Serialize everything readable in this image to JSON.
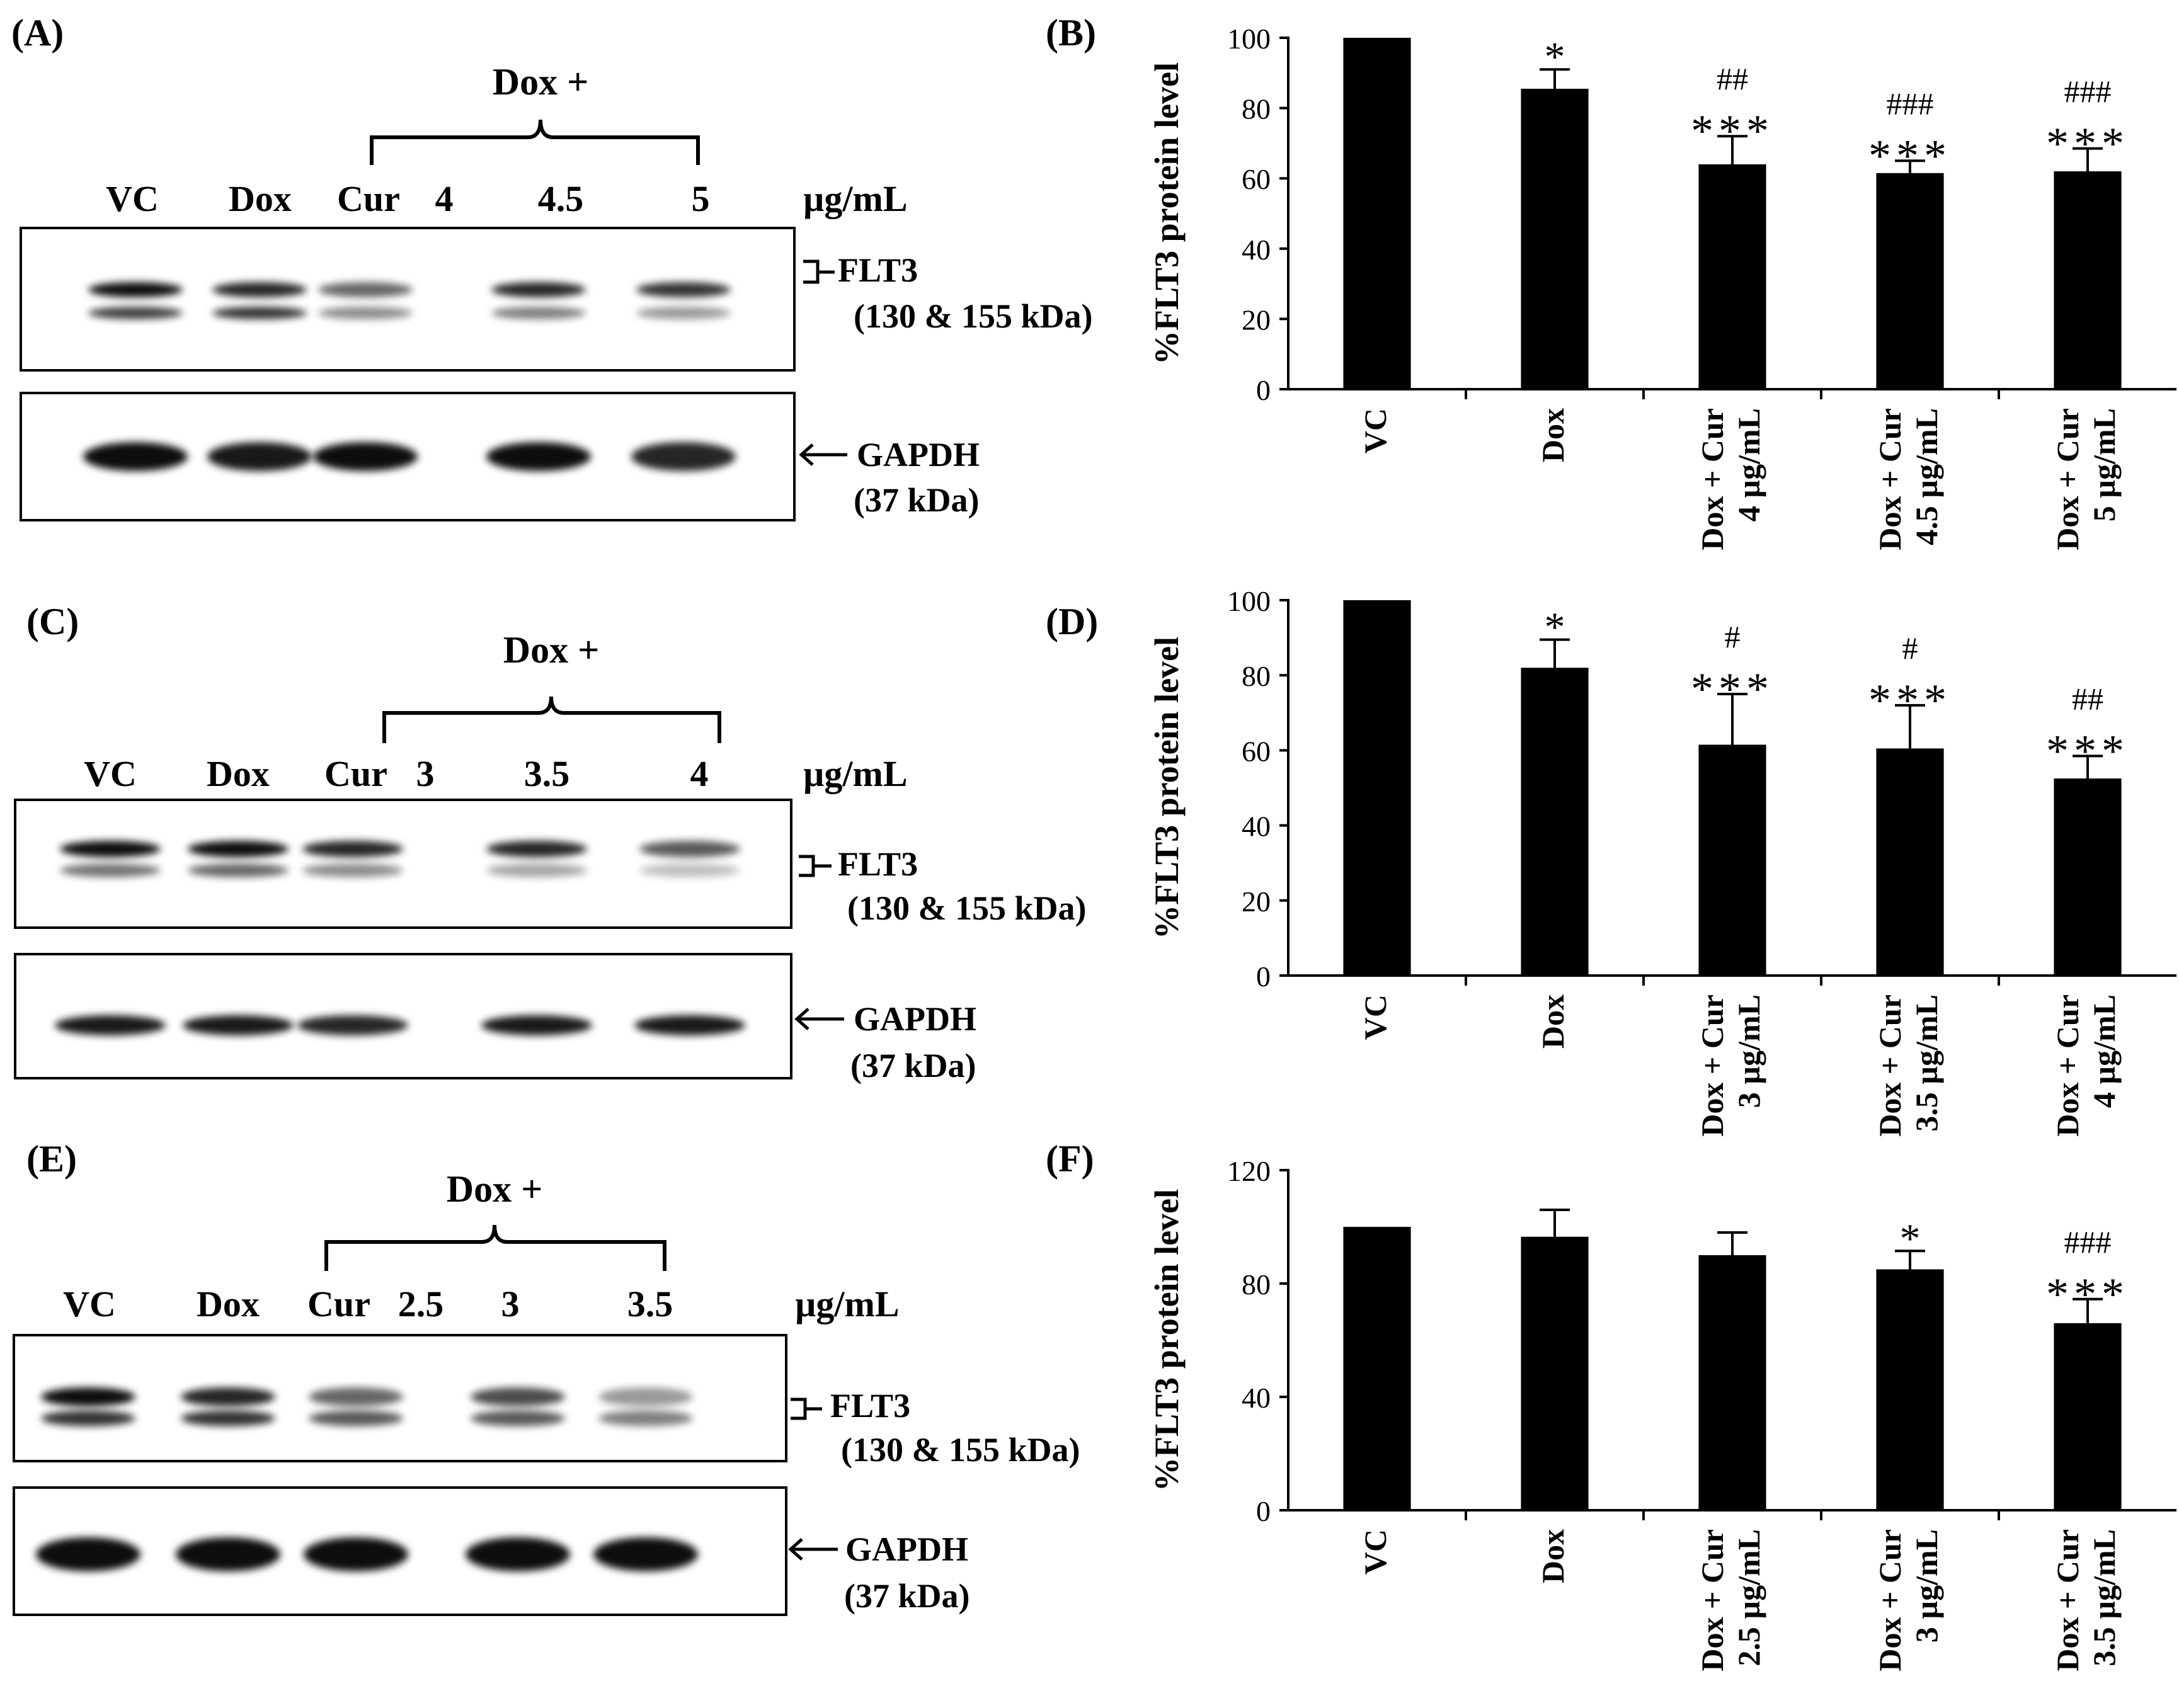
{
  "panels": {
    "A": {
      "letter": "(A)",
      "treatment": "Dox +",
      "lanes": [
        "VC",
        "Dox",
        "Cur",
        "4",
        "4.5",
        "5"
      ],
      "unit": "µg/mL",
      "target": {
        "name": "FLT3",
        "mw": "(130 & 155 kDa)"
      },
      "control": {
        "name": "GAPDH",
        "mw": "(37 kDa)"
      },
      "band_intensity": {
        "flt3_upper": [
          0.95,
          0.85,
          0.6,
          0.85,
          0.8
        ],
        "flt3_lower": [
          0.75,
          0.8,
          0.45,
          0.5,
          0.4
        ],
        "gapdh": [
          0.95,
          0.9,
          0.95,
          0.95,
          0.85
        ]
      }
    },
    "C": {
      "letter": "(C)",
      "treatment": "Dox +",
      "lanes": [
        "VC",
        "Dox",
        "Cur",
        "3",
        "3.5",
        "4"
      ],
      "unit": "µg/mL",
      "target": {
        "name": "FLT3",
        "mw": "(130 & 155 kDa)"
      },
      "control": {
        "name": "GAPDH",
        "mw": "(37 kDa)"
      },
      "band_intensity": {
        "flt3_upper": [
          0.95,
          0.95,
          0.85,
          0.85,
          0.65
        ],
        "flt3_lower": [
          0.55,
          0.6,
          0.45,
          0.35,
          0.25
        ],
        "gapdh": [
          0.9,
          0.9,
          0.85,
          0.9,
          0.9
        ]
      }
    },
    "E": {
      "letter": "(E)",
      "treatment": "Dox +",
      "lanes": [
        "VC",
        "Dox",
        "Cur",
        "2.5",
        "3",
        "3.5"
      ],
      "unit": "µg/mL",
      "target": {
        "name": "FLT3",
        "mw": "(130 & 155 kDa)"
      },
      "control": {
        "name": "GAPDH",
        "mw": "(37 kDa)"
      },
      "band_intensity": {
        "flt3_upper": [
          0.95,
          0.85,
          0.6,
          0.7,
          0.4
        ],
        "flt3_lower": [
          0.8,
          0.8,
          0.65,
          0.65,
          0.5
        ],
        "gapdh": [
          0.95,
          0.95,
          0.95,
          0.95,
          0.95
        ]
      }
    }
  },
  "chart_data": [
    {
      "panel": "(B)",
      "type": "bar",
      "ylabel": "%FLT3 protein level",
      "ylim": [
        0,
        100
      ],
      "yticks": [
        0,
        20,
        40,
        60,
        80,
        100
      ],
      "categories": [
        [
          "VC"
        ],
        [
          "Dox"
        ],
        [
          "Dox + Cur",
          "4 µg/mL"
        ],
        [
          "Dox + Cur",
          "4.5 µg/mL"
        ],
        [
          "Dox + Cur",
          "5 µg/mL"
        ]
      ],
      "values": [
        100,
        85.5,
        64,
        61.5,
        62
      ],
      "errors": [
        0,
        5.5,
        8,
        3.5,
        6.5
      ],
      "sig_star": [
        "",
        "*",
        "***",
        "***",
        "***"
      ],
      "sig_hash": [
        "",
        "",
        "##",
        "###",
        "###"
      ]
    },
    {
      "panel": "(D)",
      "type": "bar",
      "ylabel": "%FLT3 protein level",
      "ylim": [
        0,
        100
      ],
      "yticks": [
        0,
        20,
        40,
        60,
        80,
        100
      ],
      "categories": [
        [
          "VC"
        ],
        [
          "Dox"
        ],
        [
          "Dox + Cur",
          "3 µg/mL"
        ],
        [
          "Dox + Cur",
          "3.5 µg/mL"
        ],
        [
          "Dox + Cur",
          "4 µg/mL"
        ]
      ],
      "values": [
        100,
        82,
        61.5,
        60.5,
        52.5
      ],
      "errors": [
        0,
        7.5,
        13.5,
        11.5,
        6
      ],
      "sig_star": [
        "",
        "*",
        "***",
        "***",
        "***"
      ],
      "sig_hash": [
        "",
        "",
        "#",
        "#",
        "##"
      ]
    },
    {
      "panel": "(F)",
      "type": "bar",
      "ylabel": "%FLT3 protein level",
      "ylim": [
        0,
        120
      ],
      "yticks": [
        0,
        40,
        80,
        120
      ],
      "categories": [
        [
          "VC"
        ],
        [
          "Dox"
        ],
        [
          "Dox + Cur",
          "2.5 µg/mL"
        ],
        [
          "Dox + Cur",
          "3 µg/mL"
        ],
        [
          "Dox + Cur",
          "3.5 µg/mL"
        ]
      ],
      "values": [
        100,
        96.5,
        90,
        85,
        66
      ],
      "errors": [
        0,
        9.5,
        8,
        6.5,
        8.5
      ],
      "sig_star": [
        "",
        "",
        "",
        "*",
        "***"
      ],
      "sig_hash": [
        "",
        "",
        "",
        "",
        "###"
      ]
    }
  ]
}
